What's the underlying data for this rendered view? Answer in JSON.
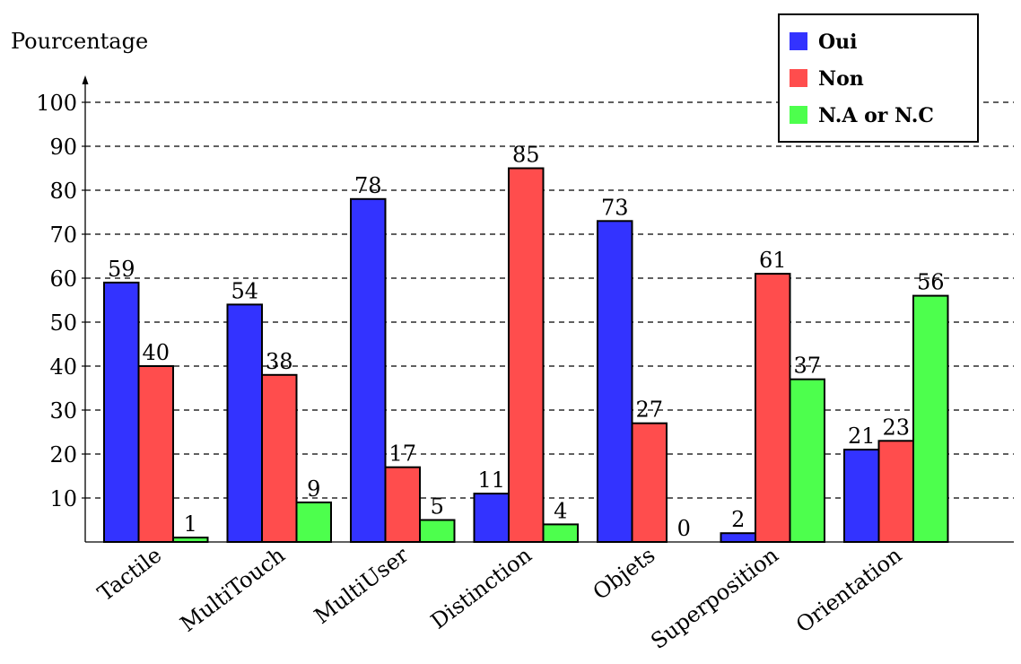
{
  "chart_data": {
    "type": "bar",
    "title": "",
    "xlabel": "",
    "ylabel": "Pourcentage",
    "ylim": [
      0,
      100
    ],
    "yticks": [
      10,
      20,
      30,
      40,
      50,
      60,
      70,
      80,
      90,
      100
    ],
    "grid": "horizontal-dashed",
    "legend_position": "top-right",
    "categories": [
      "Tactile",
      "MultiTouch",
      "MultiUser",
      "Distinction",
      "Objets",
      "Superposition",
      "Orientation"
    ],
    "series": [
      {
        "name": "Oui",
        "color": "#3333ff",
        "values": [
          59,
          54,
          78,
          11,
          73,
          2,
          21
        ]
      },
      {
        "name": "Non",
        "color": "#ff4d4d",
        "values": [
          40,
          38,
          17,
          85,
          27,
          61,
          23
        ]
      },
      {
        "name": "N.A or N.C",
        "color": "#4dff4d",
        "values": [
          1,
          9,
          5,
          4,
          0,
          37,
          56
        ]
      }
    ]
  }
}
